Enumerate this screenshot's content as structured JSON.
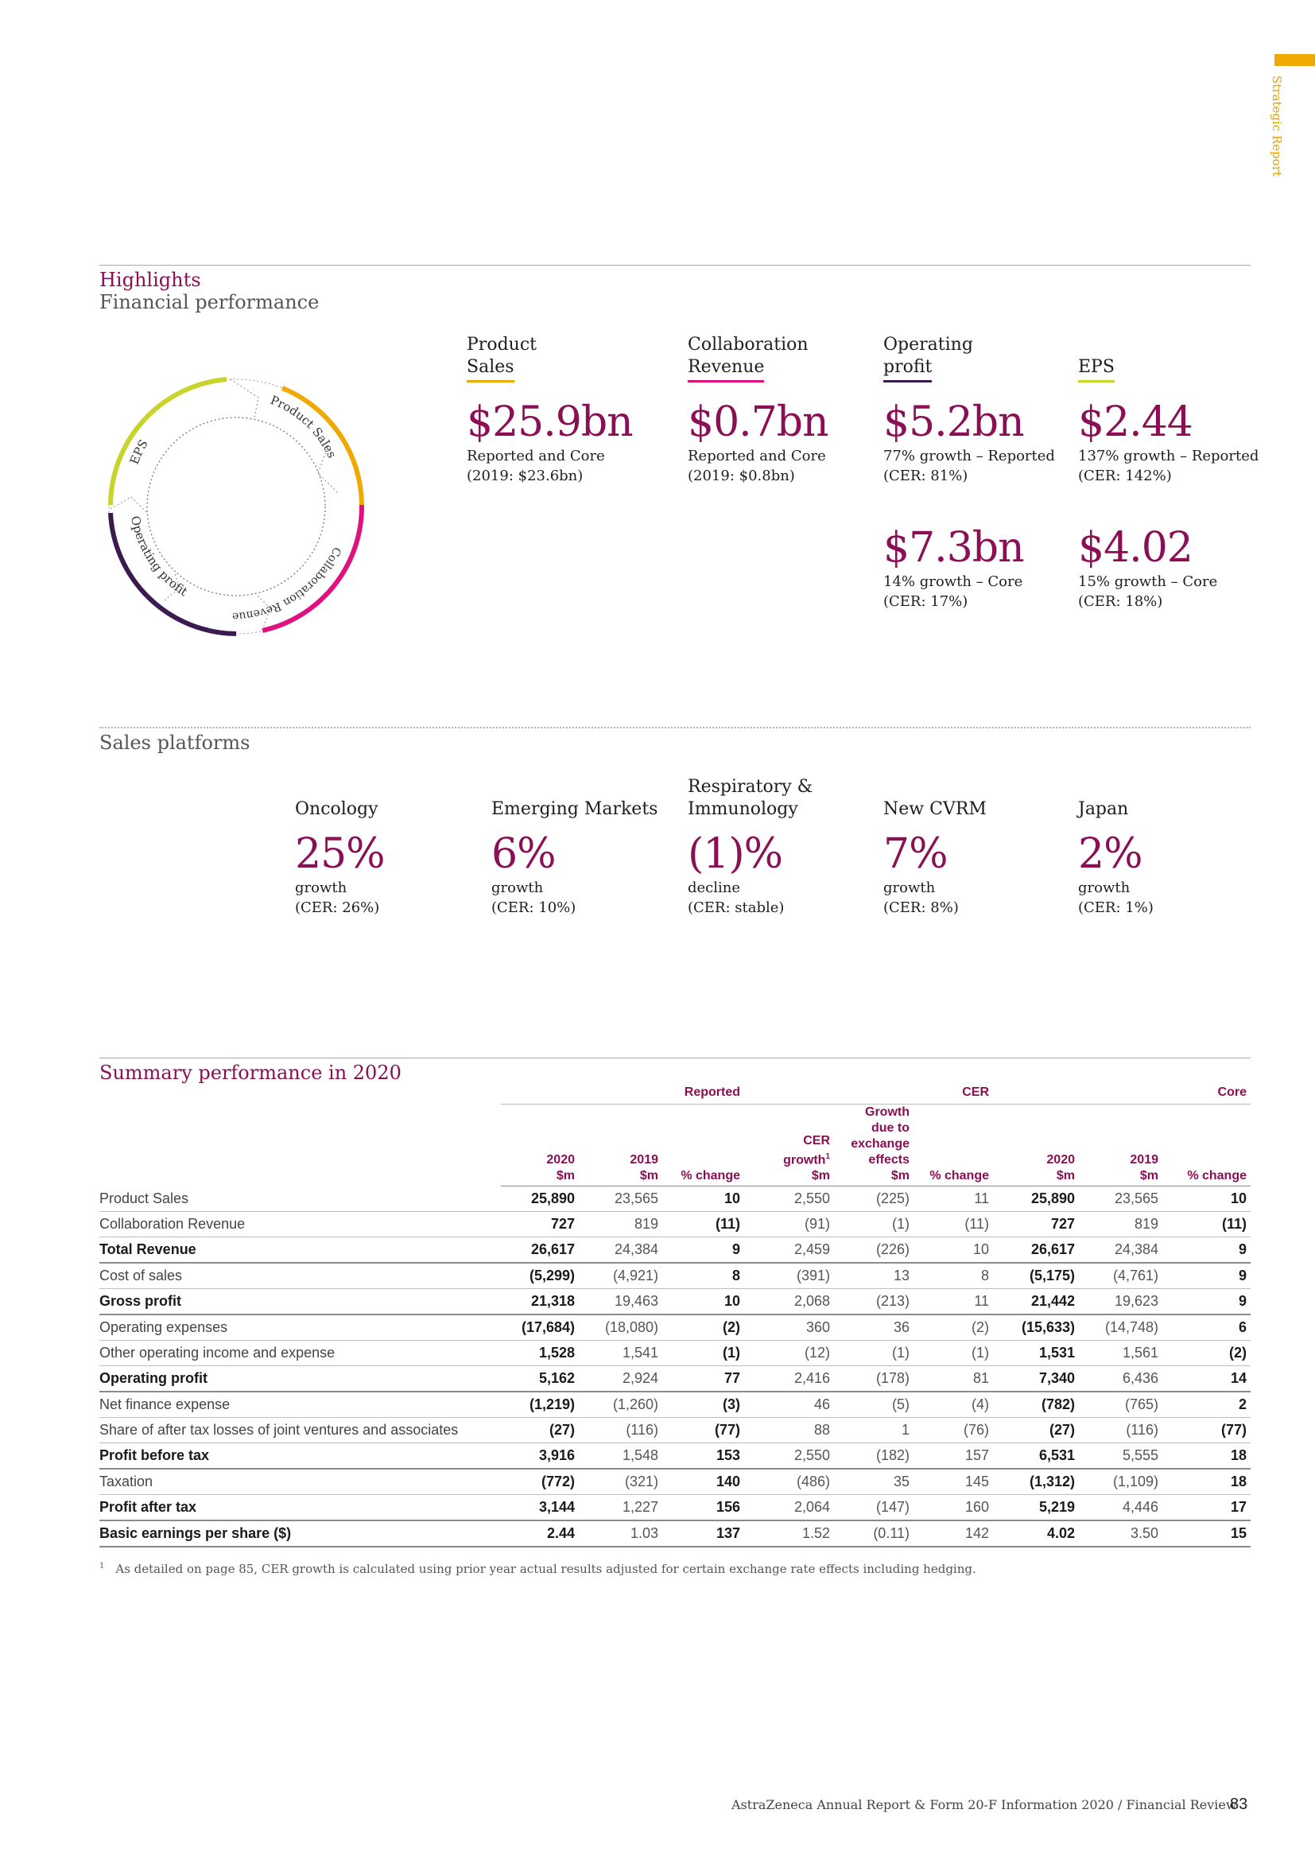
{
  "side_tab": {
    "label": "Strategic Report",
    "color": "#f0a900"
  },
  "highlights": {
    "title": "Highlights",
    "subtitle": "Financial performance"
  },
  "cycle": {
    "segments": [
      {
        "label": "Product Sales",
        "color": "#f0a900"
      },
      {
        "label": "Collaboration Revenue",
        "color": "#e0117f"
      },
      {
        "label": "Operating profit",
        "color": "#3b1a4f"
      },
      {
        "label": "EPS",
        "color": "#c8d42a"
      }
    ]
  },
  "kpis": {
    "product_sales": {
      "label_1": "Product",
      "label_2": "Sales",
      "value": "$25.9bn",
      "sub_1": "Reported and Core",
      "sub_2": "(2019: $23.6bn)",
      "accent": "#f0a900"
    },
    "collaboration_revenue": {
      "label_1": "Collaboration",
      "label_2": "Revenue",
      "value": "$0.7bn",
      "sub_1": "Reported and Core",
      "sub_2": "(2019: $0.8bn)",
      "accent": "#e0117f"
    },
    "operating_profit": {
      "label_1": "Operating",
      "label_2": "profit",
      "accent": "#3b1a4f",
      "reported": {
        "value": "$5.2bn",
        "sub_1": "77% growth – Reported",
        "sub_2": "(CER: 81%)"
      },
      "core": {
        "value": "$7.3bn",
        "sub_1": "14% growth – Core",
        "sub_2": "(CER: 17%)"
      }
    },
    "eps": {
      "label": "EPS",
      "accent": "#c8d42a",
      "reported": {
        "value": "$2.44",
        "sub_1": "137% growth – Reported",
        "sub_2": "(CER: 142%)"
      },
      "core": {
        "value": "$4.02",
        "sub_1": "15% growth – Core",
        "sub_2": "(CER: 18%)"
      }
    }
  },
  "sales_platforms": {
    "title": "Sales platforms",
    "items": [
      {
        "name_1": "",
        "name_2": "Oncology",
        "value": "25%",
        "sub_1": "growth",
        "sub_2": "(CER: 26%)"
      },
      {
        "name_1": "",
        "name_2": "Emerging Markets",
        "value": "6%",
        "sub_1": "growth",
        "sub_2": "(CER: 10%)"
      },
      {
        "name_1": "Respiratory &",
        "name_2": "Immunology",
        "value": "(1)%",
        "sub_1": "decline",
        "sub_2": "(CER: stable)"
      },
      {
        "name_1": "",
        "name_2": "New CVRM",
        "value": "7%",
        "sub_1": "growth",
        "sub_2": "(CER: 8%)"
      },
      {
        "name_1": "",
        "name_2": "Japan",
        "value": "2%",
        "sub_1": "growth",
        "sub_2": "(CER: 1%)"
      }
    ]
  },
  "summary": {
    "title": "Summary performance in 2020",
    "groups": {
      "reported": "Reported",
      "cer": "CER",
      "core": "Core"
    },
    "headers": {
      "r2020_a": "2020",
      "r2020_b": "$m",
      "r2019_a": "2019",
      "r2019_b": "$m",
      "rchg": "% change",
      "cer_growth_a": "CER",
      "cer_growth_b": "growth",
      "cer_growth_sup": "1",
      "cer_growth_c": "$m",
      "fx_a": "Growth",
      "fx_b": "due to",
      "fx_c": "exchange",
      "fx_d": "effects",
      "fx_e": "$m",
      "cerchg": "% change",
      "c2020_a": "2020",
      "c2020_b": "$m",
      "c2019_a": "2019",
      "c2019_b": "$m",
      "cchg": "% change"
    },
    "rows": [
      {
        "label": "Product Sales",
        "bold": false,
        "cells": [
          "25,890",
          "23,565",
          "10",
          "2,550",
          "(225)",
          "11",
          "25,890",
          "23,565",
          "10"
        ]
      },
      {
        "label": "Collaboration Revenue",
        "bold": false,
        "cells": [
          "727",
          "819",
          "(11)",
          "(91)",
          "(1)",
          "(11)",
          "727",
          "819",
          "(11)"
        ]
      },
      {
        "label": "Total Revenue",
        "bold": true,
        "cells": [
          "26,617",
          "24,384",
          "9",
          "2,459",
          "(226)",
          "10",
          "26,617",
          "24,384",
          "9"
        ]
      },
      {
        "label": "Cost of sales",
        "bold": false,
        "cells": [
          "(5,299)",
          "(4,921)",
          "8",
          "(391)",
          "13",
          "8",
          "(5,175)",
          "(4,761)",
          "9"
        ]
      },
      {
        "label": "Gross profit",
        "bold": true,
        "cells": [
          "21,318",
          "19,463",
          "10",
          "2,068",
          "(213)",
          "11",
          "21,442",
          "19,623",
          "9"
        ]
      },
      {
        "label": "Operating expenses",
        "bold": false,
        "cells": [
          "(17,684)",
          "(18,080)",
          "(2)",
          "360",
          "36",
          "(2)",
          "(15,633)",
          "(14,748)",
          "6"
        ]
      },
      {
        "label": "Other operating income and expense",
        "bold": false,
        "cells": [
          "1,528",
          "1,541",
          "(1)",
          "(12)",
          "(1)",
          "(1)",
          "1,531",
          "1,561",
          "(2)"
        ]
      },
      {
        "label": "Operating profit",
        "bold": true,
        "cells": [
          "5,162",
          "2,924",
          "77",
          "2,416",
          "(178)",
          "81",
          "7,340",
          "6,436",
          "14"
        ]
      },
      {
        "label": "Net finance expense",
        "bold": false,
        "cells": [
          "(1,219)",
          "(1,260)",
          "(3)",
          "46",
          "(5)",
          "(4)",
          "(782)",
          "(765)",
          "2"
        ]
      },
      {
        "label": "Share of after tax losses of joint ventures and associates",
        "bold": false,
        "cells": [
          "(27)",
          "(116)",
          "(77)",
          "88",
          "1",
          "(76)",
          "(27)",
          "(116)",
          "(77)"
        ]
      },
      {
        "label": "Profit before tax",
        "bold": true,
        "cells": [
          "3,916",
          "1,548",
          "153",
          "2,550",
          "(182)",
          "157",
          "6,531",
          "5,555",
          "18"
        ]
      },
      {
        "label": "Taxation",
        "bold": false,
        "cells": [
          "(772)",
          "(321)",
          "140",
          "(486)",
          "35",
          "145",
          "(1,312)",
          "(1,109)",
          "18"
        ]
      },
      {
        "label": "Profit after tax",
        "bold": true,
        "cells": [
          "3,144",
          "1,227",
          "156",
          "2,064",
          "(147)",
          "160",
          "5,219",
          "4,446",
          "17"
        ]
      },
      {
        "label": "Basic earnings per share ($)",
        "bold": true,
        "cells": [
          "2.44",
          "1.03",
          "137",
          "1.52",
          "(0.11)",
          "142",
          "4.02",
          "3.50",
          "15"
        ]
      }
    ],
    "footnote_mark": "1",
    "footnote": "As detailed on page 85, CER growth is calculated using prior year actual results adjusted for certain exchange rate effects including hedging."
  },
  "footer": {
    "text": "AstraZeneca Annual Report & Form 20-F Information 2020 / Financial Review",
    "page": "83"
  }
}
